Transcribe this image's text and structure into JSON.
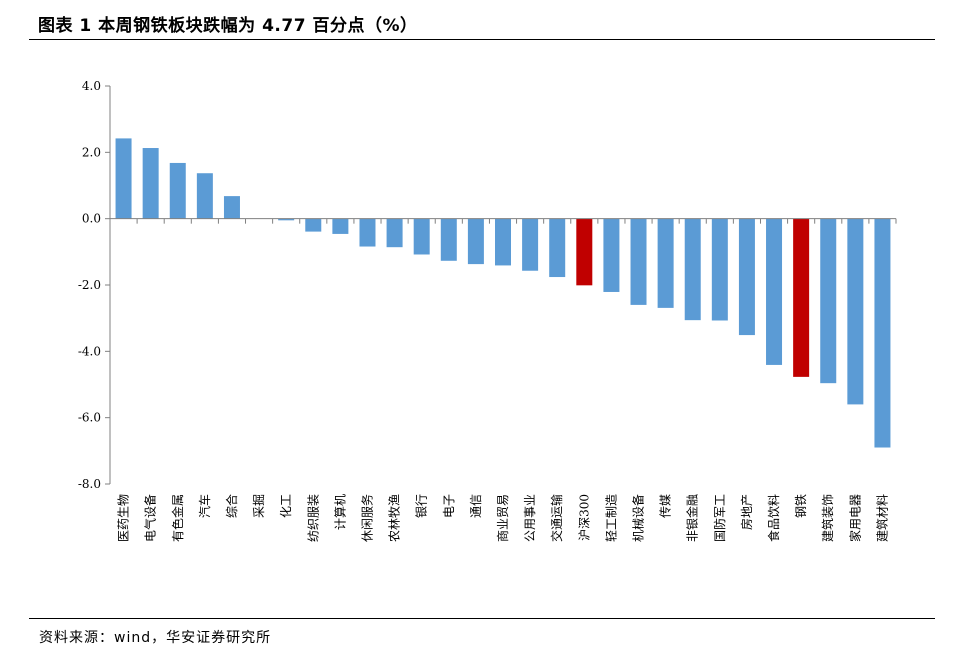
{
  "header": {
    "title": "图表 1 本周钢铁板块跌幅为 4.77 百分点（%）"
  },
  "footer": {
    "source": "资料来源：wind，华安证券研究所"
  },
  "chart_data": {
    "type": "bar",
    "title": "",
    "xlabel": "",
    "ylabel": "",
    "ylim": [
      -8.0,
      4.0
    ],
    "yticks": [
      4.0,
      2.0,
      0.0,
      -2.0,
      -4.0,
      -6.0,
      -8.0
    ],
    "ytick_labels": [
      "4.0",
      "2.0",
      "0.0",
      "-2.0",
      "-4.0",
      "-6.0",
      "-8.0"
    ],
    "grid": false,
    "legend": "none",
    "colors": {
      "default": "#5B9BD5",
      "highlight": "#C00000"
    },
    "categories": [
      "医药生物",
      "电气设备",
      "有色金属",
      "汽车",
      "综合",
      "采掘",
      "化工",
      "纺织服装",
      "计算机",
      "休闲服务",
      "农林牧渔",
      "银行",
      "电子",
      "通信",
      "商业贸易",
      "公用事业",
      "交通运输",
      "沪深300",
      "轻工制造",
      "机械设备",
      "传媒",
      "非银金融",
      "国防军工",
      "房地产",
      "食品饮料",
      "钢铁",
      "建筑装饰",
      "家用电器",
      "建筑材料"
    ],
    "values": [
      2.42,
      2.13,
      1.68,
      1.37,
      0.68,
      0.0,
      -0.05,
      -0.39,
      -0.46,
      -0.84,
      -0.86,
      -1.08,
      -1.27,
      -1.37,
      -1.41,
      -1.57,
      -1.76,
      -2.01,
      -2.21,
      -2.6,
      -2.69,
      -3.06,
      -3.07,
      -3.51,
      -4.41,
      -4.77,
      -4.96,
      -5.6,
      -6.9
    ],
    "highlight": [
      "沪深300",
      "钢铁"
    ]
  }
}
